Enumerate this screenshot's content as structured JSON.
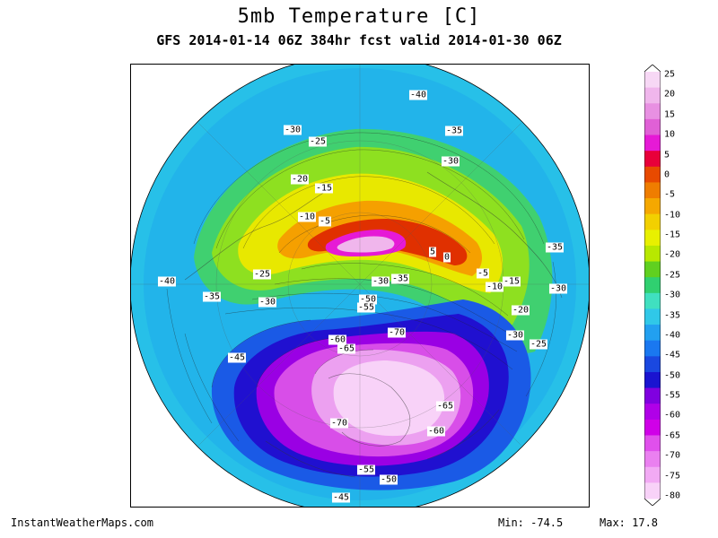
{
  "title": "5mb Temperature [C]",
  "subtitle": "GFS 2014-01-14 06Z 384hr fcst valid 2014-01-30 06Z",
  "footer": {
    "site": "InstantWeatherMaps.com",
    "min": "Min:  -74.5",
    "max": "Max:  17.8"
  },
  "map": {
    "projection": "polar stereographic, north pole",
    "contour_labels": [
      "-40",
      "-30",
      "-25",
      "-35",
      "-30",
      "-20",
      "-15",
      "-10",
      "-5",
      "5",
      "0",
      "-35",
      "-5",
      "-15",
      "-10",
      "-30",
      "-30",
      "-35",
      "-20",
      "-40",
      "-25",
      "-35",
      "-30",
      "-50",
      "-55",
      "-70",
      "-60",
      "-65",
      "-30",
      "-25",
      "-45",
      "-65",
      "-60",
      "-70",
      "-55",
      "-50",
      "-45"
    ]
  },
  "colorbar": {
    "ticks": [
      "25",
      "20",
      "15",
      "10",
      "5",
      "0",
      "-5",
      "-10",
      "-15",
      "-20",
      "-25",
      "-30",
      "-35",
      "-40",
      "-45",
      "-50",
      "-55",
      "-60",
      "-65",
      "-70",
      "-75",
      "-80"
    ],
    "colors": [
      "#f7d8f5",
      "#f0b6ec",
      "#e890e2",
      "#e060d6",
      "#e61ad6",
      "#e8003a",
      "#e84a00",
      "#ef7d00",
      "#f5a800",
      "#f2d000",
      "#e8f000",
      "#b8e800",
      "#60d020",
      "#30d070",
      "#40e0c0",
      "#30c8e8",
      "#22a0f0",
      "#1a78f0",
      "#1a48e0",
      "#1a14d0",
      "#8000e0",
      "#b000e8",
      "#d000e8",
      "#e050ec",
      "#ea80f0",
      "#f2aaf4",
      "#f8d2f8"
    ]
  }
}
